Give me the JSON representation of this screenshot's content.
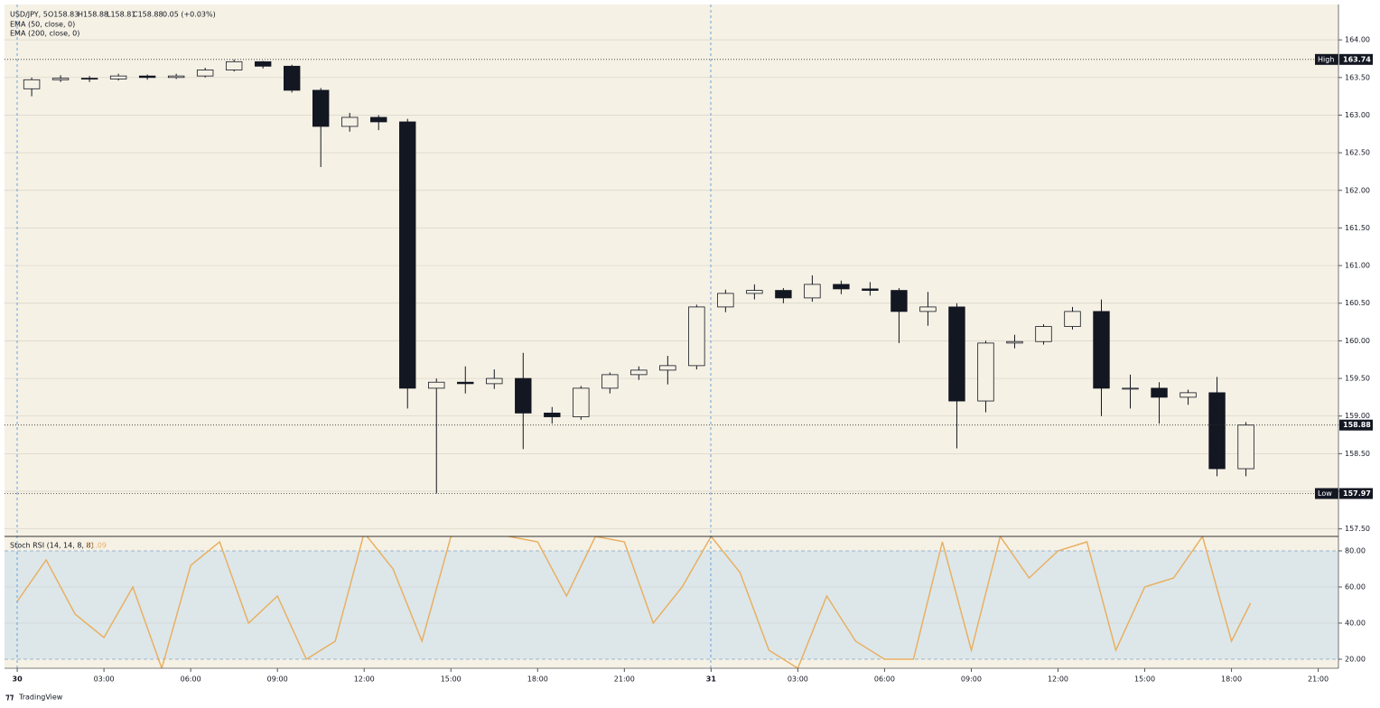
{
  "legend": [
    "USD/JPY, 5",
    "O158.83",
    "H158.88",
    "L158.81",
    "C158.88",
    "0.05 (+0.03%)",
    "EMA (50, close, 0)",
    "EMA (200, close, 0)"
  ],
  "footer": "TradingView",
  "chart_data": [
    {
      "type": "candlestick",
      "color": "#131722",
      "x": [
        0,
        1,
        2,
        3,
        4,
        5,
        6,
        7,
        8,
        9,
        10,
        11,
        12,
        13,
        14,
        15,
        16,
        17,
        18,
        19,
        20,
        21,
        22,
        23,
        24,
        25,
        26,
        27,
        28,
        29,
        30,
        31,
        32,
        33,
        34,
        35,
        36,
        37,
        38,
        39,
        40,
        41,
        42
      ],
      "open": [
        163.35,
        163.47,
        163.49,
        163.48,
        163.52,
        163.5,
        163.52,
        163.6,
        163.71,
        163.65,
        163.33,
        162.85,
        162.97,
        162.91,
        159.37,
        159.45,
        159.43,
        159.5,
        159.04,
        158.99,
        159.37,
        159.55,
        159.61,
        159.67,
        160.45,
        160.63,
        160.67,
        160.57,
        160.75,
        160.69,
        160.67,
        160.39,
        160.45,
        159.2,
        159.97,
        159.99,
        160.19,
        160.39,
        159.37,
        159.37,
        159.25,
        159.31,
        158.3
      ],
      "high": [
        163.5,
        163.53,
        163.52,
        163.55,
        163.54,
        163.55,
        163.63,
        163.74,
        163.72,
        163.67,
        163.36,
        163.03,
        163.0,
        162.95,
        159.5,
        159.66,
        159.62,
        159.84,
        159.12,
        159.4,
        159.58,
        159.66,
        159.8,
        160.48,
        160.68,
        160.75,
        160.7,
        160.87,
        160.8,
        160.78,
        160.7,
        160.65,
        160.5,
        160.0,
        160.08,
        160.22,
        160.45,
        160.55,
        159.55,
        159.45,
        159.35,
        159.52,
        158.92
      ],
      "low": [
        163.25,
        163.44,
        163.44,
        163.46,
        163.47,
        163.48,
        163.5,
        163.58,
        163.62,
        163.3,
        162.31,
        162.78,
        162.8,
        159.1,
        157.97,
        159.3,
        159.36,
        158.56,
        158.9,
        158.95,
        159.3,
        159.48,
        159.42,
        159.62,
        160.38,
        160.55,
        160.5,
        160.52,
        160.62,
        160.6,
        159.97,
        160.2,
        158.57,
        159.05,
        159.9,
        159.95,
        160.15,
        159.0,
        159.1,
        158.9,
        159.15,
        158.2,
        158.2
      ],
      "close": [
        163.47,
        163.49,
        163.48,
        163.52,
        163.5,
        163.52,
        163.6,
        163.71,
        163.65,
        163.33,
        162.85,
        162.97,
        162.91,
        159.37,
        159.45,
        159.43,
        159.5,
        159.04,
        158.99,
        159.37,
        159.55,
        159.61,
        159.67,
        160.45,
        160.63,
        160.67,
        160.57,
        160.75,
        160.69,
        160.67,
        160.39,
        160.45,
        159.2,
        159.97,
        159.99,
        160.19,
        160.39,
        159.37,
        159.37,
        159.25,
        159.31,
        158.3,
        158.88
      ],
      "xlim": [
        -0.44,
        45.7
      ],
      "ylim": [
        157.4,
        164.47
      ],
      "yticks": [
        {
          "value": 164,
          "label": "164.00"
        },
        {
          "value": 163.5,
          "label": "163.50"
        },
        {
          "value": 163,
          "label": "163.00"
        },
        {
          "value": 162.5,
          "label": "162.50"
        },
        {
          "value": 162,
          "label": "162.00"
        },
        {
          "value": 161.5,
          "label": "161.50"
        },
        {
          "value": 161,
          "label": "161.00"
        },
        {
          "value": 160.5,
          "label": "160.50"
        },
        {
          "value": 160,
          "label": "160.00"
        },
        {
          "value": 159.5,
          "label": "159.50"
        },
        {
          "value": 159,
          "label": "159.00"
        },
        {
          "value": 158.5,
          "label": "158.50"
        },
        {
          "value": 158,
          "label": "158.00"
        },
        {
          "value": 157.5,
          "label": "157.50"
        }
      ],
      "grid": true,
      "price_lines": [
        {
          "label": "High",
          "value": 163.74
        },
        {
          "label": "Low",
          "value": 157.97
        },
        {
          "value": 158.88
        }
      ]
    },
    {
      "type": "line",
      "title": "Stoch RSI (14, 14, 8, 8)",
      "last_value": 51.09,
      "color": "#e8b062",
      "x": [
        0,
        1,
        2,
        3,
        4,
        5,
        6,
        7,
        8,
        9,
        10,
        11,
        12,
        13,
        14,
        15,
        16,
        17,
        18,
        19,
        20,
        21,
        22,
        23,
        24,
        25,
        26,
        27,
        28,
        29,
        30,
        31,
        32,
        33,
        34,
        35,
        36,
        37,
        38,
        39,
        40,
        41,
        42,
        42.66
      ],
      "values": [
        52,
        75,
        45,
        32,
        60,
        15,
        72,
        85,
        40,
        55,
        20,
        30,
        90,
        70,
        30,
        88,
        90,
        88,
        85,
        55,
        88,
        85,
        40,
        60,
        88,
        68,
        25,
        15,
        55,
        30,
        20,
        20,
        85,
        25,
        88,
        65,
        80,
        85,
        25,
        60,
        65,
        88,
        30,
        51.09
      ],
      "xlim": [
        -0.44,
        45.7
      ],
      "ylim": [
        15,
        88
      ],
      "yticks": [
        {
          "value": 80,
          "label": "80.00"
        },
        {
          "value": 60,
          "label": "60.00"
        },
        {
          "value": 40,
          "label": "40.00"
        },
        {
          "value": 20,
          "label": "20.00"
        }
      ],
      "xticks": [
        {
          "value": 0,
          "label": "30"
        },
        {
          "value": 3,
          "label": "03:00"
        },
        {
          "value": 6,
          "label": "06:00"
        },
        {
          "value": 9,
          "label": "09:00"
        },
        {
          "value": 12,
          "label": "12:00"
        },
        {
          "value": 15,
          "label": "15:00"
        },
        {
          "value": 18,
          "label": "18:00"
        },
        {
          "value": 21,
          "label": "21:00"
        },
        {
          "value": 24,
          "label": "31"
        },
        {
          "value": 27,
          "label": "03:00"
        },
        {
          "value": 30,
          "label": "06:00"
        },
        {
          "value": 33,
          "label": "09:00"
        },
        {
          "value": 36,
          "label": "12:00"
        },
        {
          "value": 39,
          "label": "15:00"
        },
        {
          "value": 42,
          "label": "18:00"
        },
        {
          "value": 45,
          "label": "21:00"
        }
      ]
    }
  ]
}
